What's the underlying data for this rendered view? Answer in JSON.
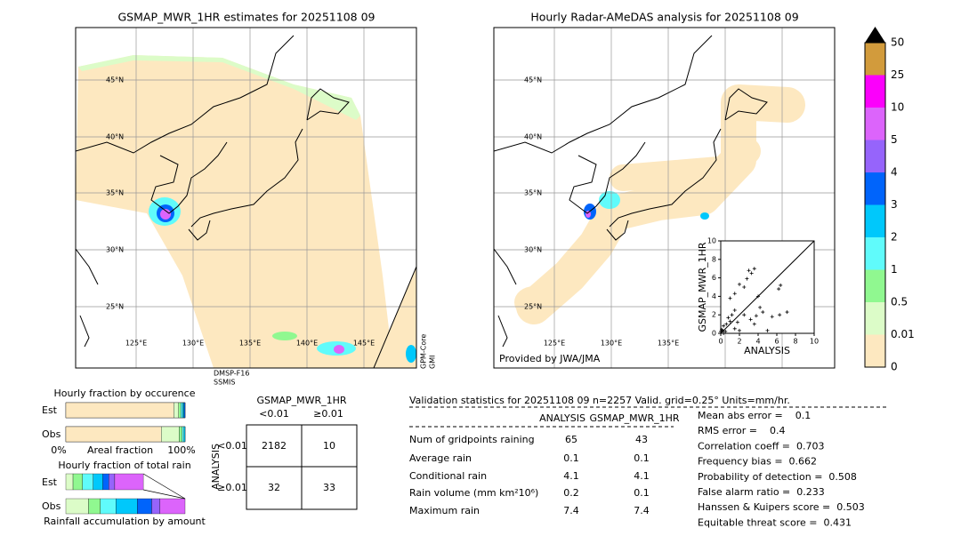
{
  "maps": {
    "left": {
      "title": "GSMAP_MWR_1HR estimates for 20251108 09",
      "lat_labels": [
        "45°N",
        "40°N",
        "35°N",
        "30°N",
        "25°N"
      ],
      "lon_labels": [
        "125°E",
        "130°E",
        "135°E",
        "140°E",
        "145°E"
      ],
      "sensor_1": [
        "DMSP-F16",
        "SSMIS"
      ],
      "sensor_2": [
        "GPM-Core",
        "GMI"
      ]
    },
    "right": {
      "title": "Hourly Radar-AMeDAS analysis for 20251108 09",
      "lat_labels": [
        "45°N",
        "40°N",
        "35°N",
        "30°N",
        "25°N"
      ],
      "lon_labels": [
        "125°E",
        "130°E",
        "135°E"
      ],
      "credit": "Provided by JWA/JMA"
    }
  },
  "colorbar": {
    "levels": [
      0,
      0.01,
      0.5,
      1,
      2,
      3,
      4,
      5,
      10,
      25,
      50
    ],
    "colors": [
      "#fde8c0",
      "#dcfcc8",
      "#90f890",
      "#60fbfb",
      "#00c8fb",
      "#0064fb",
      "#9664fb",
      "#dc64fb",
      "#fb00fb",
      "#d29b3c"
    ],
    "over_color": "#000000"
  },
  "chart_data": {
    "type": "scatter",
    "xlabel": "ANALYSIS",
    "ylabel": "GSMAP_MWR_1HR",
    "xlim": [
      0,
      10
    ],
    "ylim": [
      0,
      10
    ],
    "xticks": [
      0,
      2,
      4,
      6,
      8,
      10
    ],
    "yticks": [
      0,
      2,
      4,
      6,
      8,
      10
    ],
    "color": "#000000",
    "x": [
      0.2,
      0.3,
      0.5,
      0.6,
      1,
      1.2,
      1.5,
      0.8,
      1,
      1.5,
      2,
      2.5,
      3,
      3.3,
      3.6,
      2.8,
      4,
      4.5,
      5.5,
      6.3,
      7.1,
      6.2,
      6.4,
      3.2,
      3.6,
      2,
      1.5,
      0.3,
      0.1,
      0,
      4.2,
      3.8,
      5,
      2.5,
      1.8
    ],
    "y": [
      0.3,
      0.8,
      0.2,
      1,
      1.3,
      2,
      2.5,
      1.7,
      3.8,
      4.3,
      5.3,
      5,
      6.8,
      6.5,
      7,
      5.9,
      4,
      2.3,
      1.8,
      2,
      2.3,
      4.8,
      5.2,
      1.5,
      1,
      0.3,
      0.5,
      0,
      0.4,
      0.2,
      2.8,
      1.9,
      0.3,
      2,
      1.2
    ]
  },
  "fraction_occurrence": {
    "title": "Hourly fraction by occurence",
    "rows": [
      "Est",
      "Obs"
    ],
    "est": [
      0.905,
      0.04,
      0.02,
      0.015,
      0.012,
      0.008
    ],
    "obs": [
      0.8,
      0.15,
      0.025,
      0.015,
      0.01
    ],
    "x_left": "0%",
    "x_label": "Areal fraction",
    "x_right": "100%"
  },
  "fraction_rain": {
    "title": "Hourly fraction of total rain",
    "rows": [
      "Est",
      "Obs"
    ],
    "est": [
      0.06,
      0.08,
      0.09,
      0.08,
      0.05,
      0.05,
      0.24
    ],
    "obs": [
      0.19,
      0.1,
      0.13,
      0.18,
      0.12,
      0.07,
      0.21
    ],
    "x_label": "Rainfall accumulation by amount"
  },
  "contingency": {
    "title": "GSMAP_MWR_1HR",
    "col_labels": [
      "<0.01",
      "≥0.01"
    ],
    "row_title": "ANALYSIS",
    "row_labels": [
      "<0.01",
      "≥0.01"
    ],
    "cells": [
      [
        2182,
        10
      ],
      [
        32,
        33
      ]
    ]
  },
  "validation": {
    "header": "Validation statistics for 20251108 09  n=2257 Valid. grid=0.25° Units=mm/hr.",
    "columns": [
      "ANALYSIS",
      "GSMAP_MWR_1HR"
    ],
    "rows": [
      {
        "name": "Num of gridpoints raining",
        "analysis": 65,
        "gsmap": 43
      },
      {
        "name": "Average rain",
        "analysis": 0.1,
        "gsmap": 0.1
      },
      {
        "name": "Conditional rain",
        "analysis": 4.1,
        "gsmap": 4.1
      },
      {
        "name": "Rain volume (mm km²10⁶)",
        "analysis": 0.2,
        "gsmap": 0.1
      },
      {
        "name": "Maximum rain",
        "analysis": 7.4,
        "gsmap": 7.4
      }
    ],
    "scores": [
      "Mean abs error =    0.1",
      "RMS error =    0.4",
      "Correlation coeff =  0.703",
      "Frequency bias =  0.662",
      "Probability of detection =  0.508",
      "False alarm ratio =  0.233",
      "Hanssen & Kuipers score =  0.503",
      "Equitable threat score =  0.431"
    ]
  }
}
